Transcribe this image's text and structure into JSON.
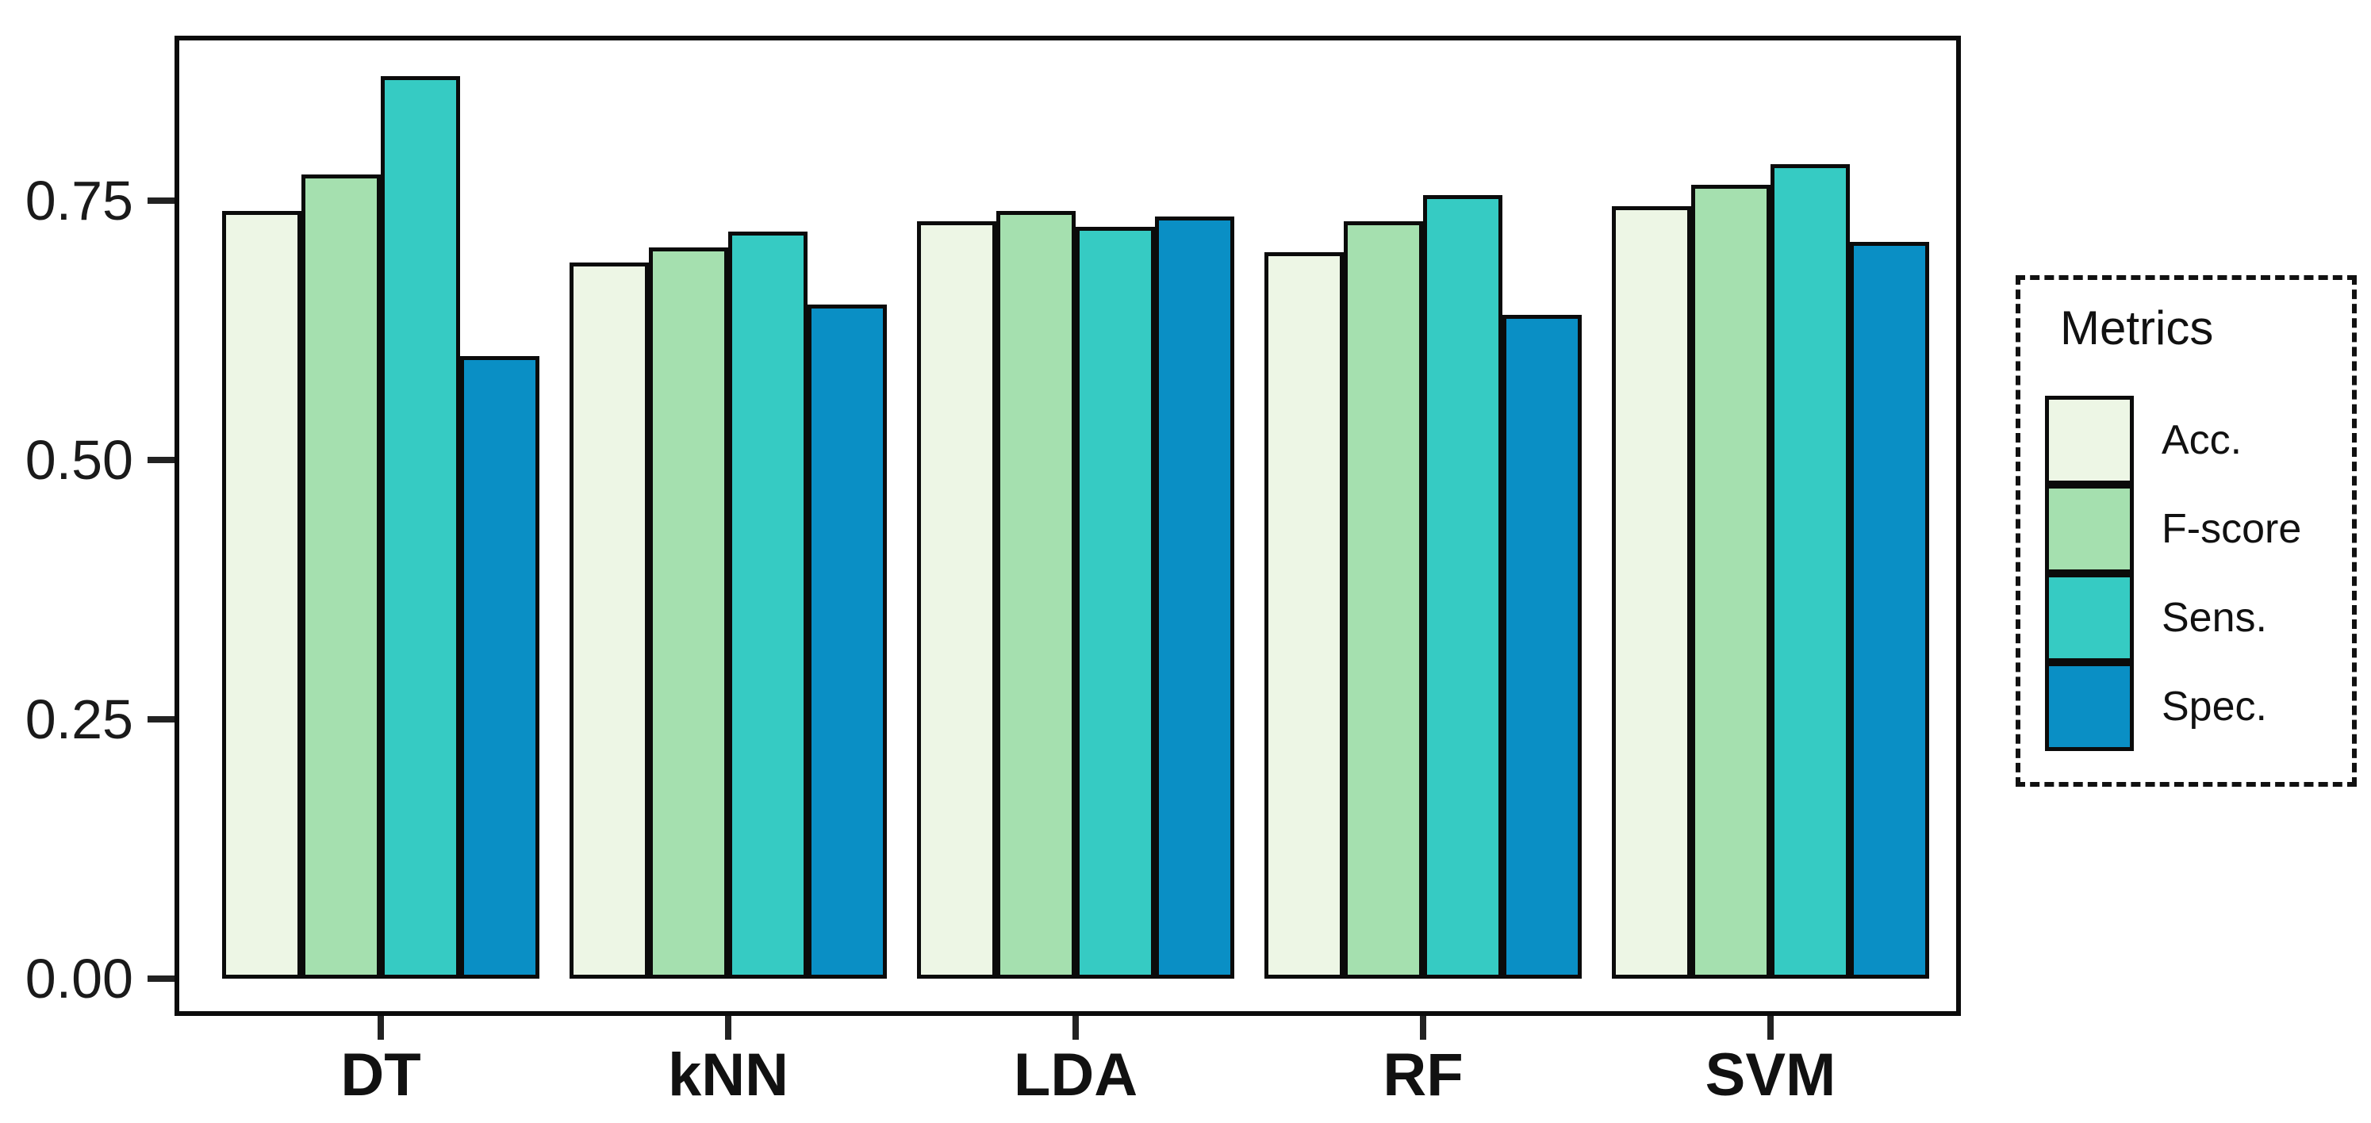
{
  "chart_data": {
    "type": "bar",
    "title": "",
    "xlabel": "",
    "ylabel": "",
    "categories": [
      "DT",
      "kNN",
      "LDA",
      "RF",
      "SVM"
    ],
    "series": [
      {
        "name": "Acc.",
        "color": "#edf6e5",
        "values": [
          0.74,
          0.69,
          0.73,
          0.7,
          0.745
        ]
      },
      {
        "name": "F-score",
        "color": "#a5e0af",
        "values": [
          0.775,
          0.705,
          0.74,
          0.73,
          0.765
        ]
      },
      {
        "name": "Sens.",
        "color": "#36cbc3",
        "values": [
          0.87,
          0.72,
          0.725,
          0.755,
          0.785
        ]
      },
      {
        "name": "Spec.",
        "color": "#0a8fc5",
        "values": [
          0.6,
          0.65,
          0.735,
          0.64,
          0.71
        ]
      }
    ],
    "ylim": [
      0,
      0.908
    ],
    "yticks": [
      0.0,
      0.25,
      0.5,
      0.75
    ],
    "ytick_labels": [
      "0.00",
      "0.25",
      "0.50",
      "0.75"
    ],
    "grid": false,
    "legend_title": "Metrics",
    "legend_position": "right",
    "bar_border_color": "#0b0b0b",
    "panel_border_color": "#0b0b0b",
    "legend_border_style": "dashed"
  }
}
